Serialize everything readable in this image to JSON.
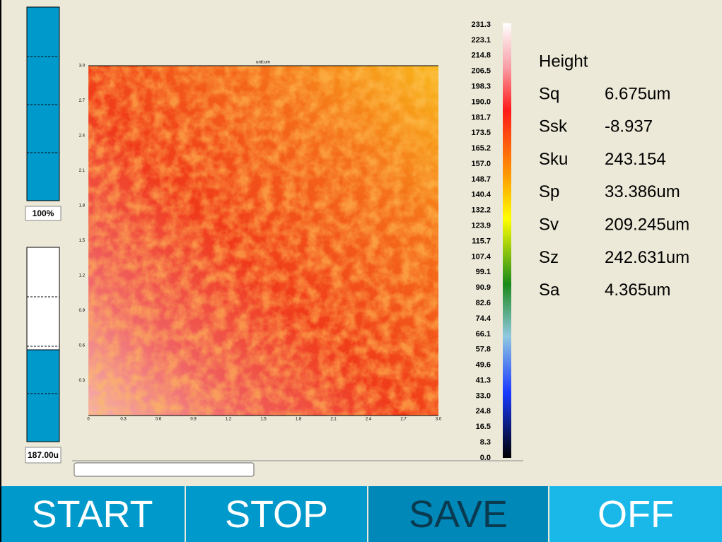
{
  "gauges": [
    {
      "label": "100%"
    },
    {
      "label": "187.00u"
    }
  ],
  "map": {
    "title": "unit:um",
    "x_ticks": [
      "0",
      "0.3",
      "0.6",
      "0.9",
      "1.2",
      "1.5",
      "1.8",
      "2.1",
      "2.4",
      "2.7",
      "3.0"
    ],
    "y_ticks": [
      "3.0",
      "2.7",
      "2.4",
      "2.1",
      "1.8",
      "1.5",
      "1.2",
      "0.9",
      "0.6",
      "0.3"
    ]
  },
  "colorbar": {
    "labels": [
      "231.3",
      "223.1",
      "214.8",
      "206.5",
      "198.3",
      "190.0",
      "181.7",
      "173.5",
      "165.2",
      "157.0",
      "148.7",
      "140.4",
      "132.2",
      "123.9",
      "115.7",
      "107.4",
      "99.1",
      "90.9",
      "82.6",
      "74.4",
      "66.1",
      "57.8",
      "49.6",
      "41.3",
      "33.0",
      "24.8",
      "16.5",
      "8.3",
      "0.0"
    ]
  },
  "stats": {
    "title": "Height",
    "rows": [
      [
        "Sq",
        "6.675um"
      ],
      [
        "Ssk",
        "-8.937"
      ],
      [
        "Sku",
        "243.154"
      ],
      [
        "Sp",
        "33.386um"
      ],
      [
        "Sv",
        "209.245um"
      ],
      [
        "Sz",
        "242.631um"
      ],
      [
        "Sa",
        "4.365um"
      ]
    ]
  },
  "buttons": [
    "START",
    "STOP",
    "SAVE",
    "OFF"
  ]
}
